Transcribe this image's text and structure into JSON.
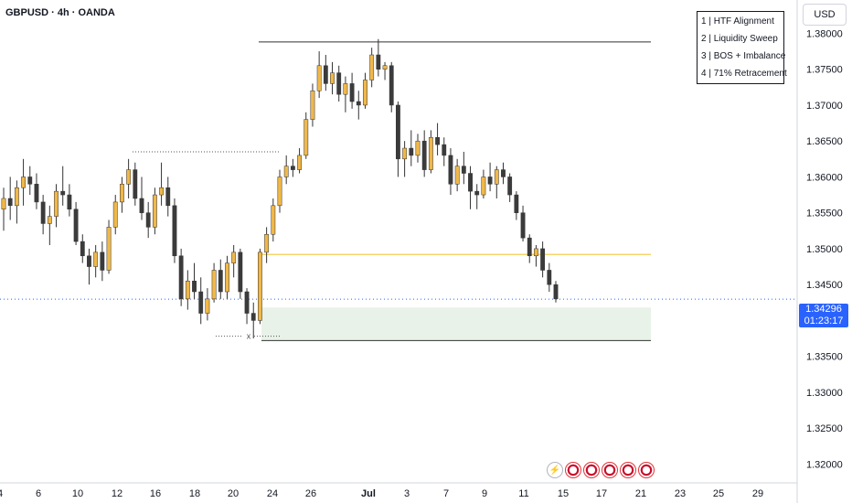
{
  "header": {
    "ticker": "GBPUSD · 4h · OANDA"
  },
  "currency": "USD",
  "legend": [
    "1 | HTF Alignment",
    "2 | Liquidity Sweep",
    "3 | BOS + Imbalance",
    "4 | 71% Retracement"
  ],
  "price_tag": {
    "price": "1.34296",
    "countdown": "01:23:17",
    "color": "#2962ff"
  },
  "sweep_marker": "x",
  "events": [
    "flash-icon",
    "us-flag-icon",
    "uk-flag-icon",
    "uk-flag-icon",
    "uk-flag-icon",
    "us-flag-icon"
  ],
  "colors": {
    "bull": "#f0b84a",
    "bear": "#3b3b3b",
    "level": "#f2c53d",
    "zone": "#e8f2e8",
    "axis_text": "#131722"
  },
  "chart_data": {
    "type": "candlestick",
    "y_ticks": [
      "1.38000",
      "1.37500",
      "1.37000",
      "1.36500",
      "1.36000",
      "1.35500",
      "1.35000",
      "1.34500",
      "1.34000",
      "1.33500",
      "1.33000",
      "1.32500",
      "1.32000"
    ],
    "ylim": [
      1.3175,
      1.3835
    ],
    "x_ticks": [
      "4",
      "6",
      "10",
      "12",
      "16",
      "18",
      "20",
      "24",
      "26",
      "Jul",
      "3",
      "7",
      "9",
      "11",
      "15",
      "17",
      "21",
      "23",
      "25",
      "29"
    ],
    "annotations": {
      "high_line": 1.3788,
      "retracement_line": 1.3492,
      "dotted_level": 1.3635,
      "current_price": 1.34296,
      "zone": [
        1.3372,
        1.3418
      ]
    },
    "ohlc": [
      [
        1.3555,
        1.3585,
        1.3525,
        1.357
      ],
      [
        1.357,
        1.36,
        1.354,
        1.356
      ],
      [
        1.356,
        1.3595,
        1.3535,
        1.3585
      ],
      [
        1.3585,
        1.3625,
        1.356,
        1.36
      ],
      [
        1.36,
        1.3615,
        1.3575,
        1.359
      ],
      [
        1.359,
        1.3605,
        1.3555,
        1.3565
      ],
      [
        1.3565,
        1.3575,
        1.352,
        1.3535
      ],
      [
        1.3535,
        1.356,
        1.3505,
        1.3545
      ],
      [
        1.3545,
        1.359,
        1.353,
        1.358
      ],
      [
        1.358,
        1.3615,
        1.356,
        1.3575
      ],
      [
        1.3575,
        1.359,
        1.3545,
        1.3555
      ],
      [
        1.3555,
        1.3565,
        1.3505,
        1.351
      ],
      [
        1.351,
        1.352,
        1.348,
        1.349
      ],
      [
        1.349,
        1.35,
        1.345,
        1.3475
      ],
      [
        1.3475,
        1.3505,
        1.346,
        1.3495
      ],
      [
        1.3495,
        1.351,
        1.3455,
        1.347
      ],
      [
        1.347,
        1.354,
        1.3465,
        1.353
      ],
      [
        1.353,
        1.3575,
        1.352,
        1.3565
      ],
      [
        1.3565,
        1.36,
        1.355,
        1.359
      ],
      [
        1.359,
        1.3625,
        1.357,
        1.361
      ],
      [
        1.361,
        1.362,
        1.356,
        1.357
      ],
      [
        1.357,
        1.36,
        1.354,
        1.355
      ],
      [
        1.355,
        1.3565,
        1.3515,
        1.353
      ],
      [
        1.353,
        1.3585,
        1.352,
        1.3575
      ],
      [
        1.3575,
        1.362,
        1.356,
        1.3585
      ],
      [
        1.3585,
        1.36,
        1.3545,
        1.356
      ],
      [
        1.356,
        1.357,
        1.348,
        1.349
      ],
      [
        1.349,
        1.35,
        1.342,
        1.343
      ],
      [
        1.343,
        1.347,
        1.3415,
        1.3455
      ],
      [
        1.3455,
        1.348,
        1.343,
        1.344
      ],
      [
        1.344,
        1.346,
        1.3395,
        1.341
      ],
      [
        1.341,
        1.3445,
        1.34,
        1.343
      ],
      [
        1.343,
        1.348,
        1.3425,
        1.347
      ],
      [
        1.347,
        1.3485,
        1.343,
        1.344
      ],
      [
        1.344,
        1.349,
        1.343,
        1.348
      ],
      [
        1.348,
        1.3505,
        1.346,
        1.3495
      ],
      [
        1.3495,
        1.35,
        1.343,
        1.344
      ],
      [
        1.344,
        1.3445,
        1.3395,
        1.341
      ],
      [
        1.341,
        1.3425,
        1.3375,
        1.34
      ],
      [
        1.34,
        1.35,
        1.3395,
        1.3495
      ],
      [
        1.3495,
        1.353,
        1.348,
        1.352
      ],
      [
        1.352,
        1.357,
        1.351,
        1.356
      ],
      [
        1.356,
        1.361,
        1.355,
        1.36
      ],
      [
        1.36,
        1.363,
        1.359,
        1.3615
      ],
      [
        1.3615,
        1.3625,
        1.36,
        1.361
      ],
      [
        1.361,
        1.364,
        1.3605,
        1.363
      ],
      [
        1.363,
        1.369,
        1.3625,
        1.368
      ],
      [
        1.368,
        1.373,
        1.367,
        1.372
      ],
      [
        1.372,
        1.3775,
        1.371,
        1.3755
      ],
      [
        1.3755,
        1.377,
        1.372,
        1.373
      ],
      [
        1.373,
        1.376,
        1.3715,
        1.3745
      ],
      [
        1.3745,
        1.3755,
        1.3705,
        1.3715
      ],
      [
        1.3715,
        1.374,
        1.369,
        1.373
      ],
      [
        1.373,
        1.3745,
        1.3695,
        1.3705
      ],
      [
        1.3705,
        1.372,
        1.368,
        1.37
      ],
      [
        1.37,
        1.3745,
        1.3695,
        1.3735
      ],
      [
        1.3735,
        1.378,
        1.3725,
        1.377
      ],
      [
        1.377,
        1.3792,
        1.374,
        1.375
      ],
      [
        1.375,
        1.376,
        1.3735,
        1.3755
      ],
      [
        1.3755,
        1.376,
        1.369,
        1.37
      ],
      [
        1.37,
        1.3705,
        1.36,
        1.3625
      ],
      [
        1.3625,
        1.365,
        1.36,
        1.364
      ],
      [
        1.364,
        1.3665,
        1.3615,
        1.363
      ],
      [
        1.363,
        1.366,
        1.362,
        1.365
      ],
      [
        1.365,
        1.3665,
        1.36,
        1.361
      ],
      [
        1.361,
        1.3665,
        1.3605,
        1.3655
      ],
      [
        1.3655,
        1.3675,
        1.363,
        1.3645
      ],
      [
        1.3645,
        1.3655,
        1.3615,
        1.363
      ],
      [
        1.363,
        1.364,
        1.3575,
        1.359
      ],
      [
        1.359,
        1.3625,
        1.358,
        1.3615
      ],
      [
        1.3615,
        1.3635,
        1.359,
        1.3605
      ],
      [
        1.3605,
        1.3615,
        1.3555,
        1.358
      ],
      [
        1.358,
        1.359,
        1.3555,
        1.3575
      ],
      [
        1.3575,
        1.361,
        1.357,
        1.36
      ],
      [
        1.36,
        1.362,
        1.358,
        1.359
      ],
      [
        1.359,
        1.3615,
        1.357,
        1.361
      ],
      [
        1.361,
        1.362,
        1.359,
        1.36
      ],
      [
        1.36,
        1.3605,
        1.3565,
        1.3575
      ],
      [
        1.3575,
        1.358,
        1.354,
        1.355
      ],
      [
        1.355,
        1.356,
        1.351,
        1.3515
      ],
      [
        1.3515,
        1.352,
        1.348,
        1.349
      ],
      [
        1.349,
        1.3505,
        1.3475,
        1.35
      ],
      [
        1.35,
        1.351,
        1.346,
        1.347
      ],
      [
        1.347,
        1.348,
        1.344,
        1.345
      ],
      [
        1.345,
        1.3455,
        1.3425,
        1.343
      ]
    ]
  }
}
